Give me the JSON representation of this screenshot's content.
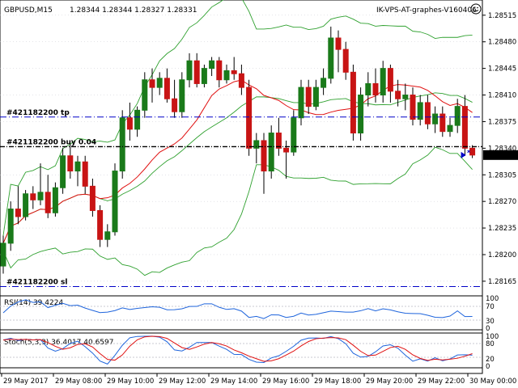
{
  "window": {
    "symbol_timeframe": "GBPUSD,M15",
    "ohlc": "1.28344 1.28344 1.28327 1.28331",
    "expert": "IK-VPS-AT-graphes-V160406",
    "expert_icon": "smiley-icon"
  },
  "colors": {
    "bull": "#1a7a1a",
    "bear": "#c81414",
    "ma": "#e01010",
    "bands": "#2ea02e",
    "order_line": "#0000c8",
    "rsi": "#1e64dc",
    "stoch_main": "#1e64dc",
    "stoch_signal": "#e01010",
    "grid": "#c8c8d0",
    "price_label_bg": "#000000"
  },
  "orders": [
    {
      "label": "#421182200 tp",
      "price": 1.28381
    },
    {
      "label": "#421182200 buy 0.04",
      "price": 1.28342
    },
    {
      "label": "#421182200 sl",
      "price": 1.28158
    }
  ],
  "current_price": "1.28331",
  "price_axis": [
    "1.28515",
    "1.28480",
    "1.28445",
    "1.28410",
    "1.28375",
    "1.28340",
    "1.28305",
    "1.28270",
    "1.28235",
    "1.28200",
    "1.28165"
  ],
  "time_axis": [
    "29 May 2017",
    "29 May 08:00",
    "29 May 10:00",
    "29 May 12:00",
    "29 May 14:00",
    "29 May 16:00",
    "29 May 18:00",
    "29 May 20:00",
    "29 May 22:00",
    "30 May 00:00"
  ],
  "rsi": {
    "label": "RSI(14) 39.4224",
    "levels": [
      "100",
      "70",
      "30",
      "0"
    ]
  },
  "stoch": {
    "label": "Stoch(5,3,3) 36.4017 40.6597",
    "levels": [
      "100",
      "80",
      "20",
      "0"
    ]
  },
  "chart_data": {
    "type": "candlestick",
    "symbol": "GBPUSD",
    "timeframe": "M15",
    "ylim": [
      1.2815,
      1.2852
    ],
    "candles": [
      {
        "o": 1.28185,
        "h": 1.28225,
        "l": 1.28175,
        "c": 1.28215
      },
      {
        "o": 1.28215,
        "h": 1.2827,
        "l": 1.28205,
        "c": 1.2826
      },
      {
        "o": 1.2826,
        "h": 1.2829,
        "l": 1.2824,
        "c": 1.2825
      },
      {
        "o": 1.2825,
        "h": 1.28285,
        "l": 1.28245,
        "c": 1.2828
      },
      {
        "o": 1.2828,
        "h": 1.2829,
        "l": 1.2826,
        "c": 1.28272
      },
      {
        "o": 1.28272,
        "h": 1.2832,
        "l": 1.28265,
        "c": 1.28282
      },
      {
        "o": 1.28282,
        "h": 1.28305,
        "l": 1.28248,
        "c": 1.28255
      },
      {
        "o": 1.28255,
        "h": 1.28295,
        "l": 1.2825,
        "c": 1.28288
      },
      {
        "o": 1.28288,
        "h": 1.2834,
        "l": 1.2828,
        "c": 1.2833
      },
      {
        "o": 1.2833,
        "h": 1.28345,
        "l": 1.283,
        "c": 1.2831
      },
      {
        "o": 1.2831,
        "h": 1.2833,
        "l": 1.2829,
        "c": 1.28322
      },
      {
        "o": 1.28322,
        "h": 1.2833,
        "l": 1.2828,
        "c": 1.2829
      },
      {
        "o": 1.2829,
        "h": 1.283,
        "l": 1.2825,
        "c": 1.28258
      },
      {
        "o": 1.28258,
        "h": 1.28265,
        "l": 1.2821,
        "c": 1.2822
      },
      {
        "o": 1.2822,
        "h": 1.2824,
        "l": 1.2821,
        "c": 1.2823
      },
      {
        "o": 1.2823,
        "h": 1.2832,
        "l": 1.28225,
        "c": 1.2831
      },
      {
        "o": 1.2831,
        "h": 1.2839,
        "l": 1.283,
        "c": 1.2838
      },
      {
        "o": 1.2838,
        "h": 1.284,
        "l": 1.2835,
        "c": 1.28365
      },
      {
        "o": 1.28365,
        "h": 1.28395,
        "l": 1.28355,
        "c": 1.2839
      },
      {
        "o": 1.2839,
        "h": 1.2844,
        "l": 1.2838,
        "c": 1.2843
      },
      {
        "o": 1.2843,
        "h": 1.28445,
        "l": 1.284,
        "c": 1.2842
      },
      {
        "o": 1.2842,
        "h": 1.2844,
        "l": 1.2841,
        "c": 1.28432
      },
      {
        "o": 1.28432,
        "h": 1.28445,
        "l": 1.284,
        "c": 1.28405
      },
      {
        "o": 1.28405,
        "h": 1.2843,
        "l": 1.2838,
        "c": 1.28388
      },
      {
        "o": 1.28388,
        "h": 1.2844,
        "l": 1.2838,
        "c": 1.2843
      },
      {
        "o": 1.2843,
        "h": 1.28465,
        "l": 1.2842,
        "c": 1.28455
      },
      {
        "o": 1.28455,
        "h": 1.28465,
        "l": 1.2842,
        "c": 1.28425
      },
      {
        "o": 1.28425,
        "h": 1.2845,
        "l": 1.2842,
        "c": 1.28445
      },
      {
        "o": 1.28445,
        "h": 1.2846,
        "l": 1.28435,
        "c": 1.28455
      },
      {
        "o": 1.28455,
        "h": 1.2846,
        "l": 1.2842,
        "c": 1.2843
      },
      {
        "o": 1.2843,
        "h": 1.2845,
        "l": 1.28425,
        "c": 1.28442
      },
      {
        "o": 1.28442,
        "h": 1.2846,
        "l": 1.2843,
        "c": 1.28438
      },
      {
        "o": 1.28438,
        "h": 1.2845,
        "l": 1.2841,
        "c": 1.2842
      },
      {
        "o": 1.2842,
        "h": 1.2843,
        "l": 1.2833,
        "c": 1.2834
      },
      {
        "o": 1.2834,
        "h": 1.2836,
        "l": 1.2832,
        "c": 1.2835
      },
      {
        "o": 1.2835,
        "h": 1.2836,
        "l": 1.2828,
        "c": 1.2831
      },
      {
        "o": 1.2831,
        "h": 1.2837,
        "l": 1.283,
        "c": 1.2836
      },
      {
        "o": 1.2836,
        "h": 1.2838,
        "l": 1.2833,
        "c": 1.2834
      },
      {
        "o": 1.2834,
        "h": 1.2835,
        "l": 1.283,
        "c": 1.28335
      },
      {
        "o": 1.28335,
        "h": 1.2839,
        "l": 1.2833,
        "c": 1.2838
      },
      {
        "o": 1.2838,
        "h": 1.2843,
        "l": 1.2837,
        "c": 1.2842
      },
      {
        "o": 1.2842,
        "h": 1.2843,
        "l": 1.28385,
        "c": 1.28395
      },
      {
        "o": 1.28395,
        "h": 1.2843,
        "l": 1.2839,
        "c": 1.2842
      },
      {
        "o": 1.2842,
        "h": 1.28445,
        "l": 1.2841,
        "c": 1.28432
      },
      {
        "o": 1.28432,
        "h": 1.285,
        "l": 1.28425,
        "c": 1.28485
      },
      {
        "o": 1.28485,
        "h": 1.28495,
        "l": 1.2844,
        "c": 1.2847
      },
      {
        "o": 1.2847,
        "h": 1.2848,
        "l": 1.2843,
        "c": 1.2844
      },
      {
        "o": 1.2844,
        "h": 1.2845,
        "l": 1.2835,
        "c": 1.2836
      },
      {
        "o": 1.2836,
        "h": 1.2842,
        "l": 1.2835,
        "c": 1.2841
      },
      {
        "o": 1.2841,
        "h": 1.2844,
        "l": 1.28395,
        "c": 1.28425
      },
      {
        "o": 1.28425,
        "h": 1.28445,
        "l": 1.284,
        "c": 1.2841
      },
      {
        "o": 1.2841,
        "h": 1.28455,
        "l": 1.284,
        "c": 1.28445
      },
      {
        "o": 1.28445,
        "h": 1.2845,
        "l": 1.284,
        "c": 1.28415
      },
      {
        "o": 1.28415,
        "h": 1.2843,
        "l": 1.28395,
        "c": 1.28405
      },
      {
        "o": 1.28405,
        "h": 1.28425,
        "l": 1.2839,
        "c": 1.2841
      },
      {
        "o": 1.2841,
        "h": 1.2842,
        "l": 1.2837,
        "c": 1.28378
      },
      {
        "o": 1.28378,
        "h": 1.2841,
        "l": 1.2837,
        "c": 1.284
      },
      {
        "o": 1.284,
        "h": 1.2841,
        "l": 1.28365,
        "c": 1.28372
      },
      {
        "o": 1.28372,
        "h": 1.28395,
        "l": 1.2836,
        "c": 1.28385
      },
      {
        "o": 1.28385,
        "h": 1.28395,
        "l": 1.28355,
        "c": 1.28362
      },
      {
        "o": 1.28362,
        "h": 1.2838,
        "l": 1.28355,
        "c": 1.2837
      },
      {
        "o": 1.2837,
        "h": 1.28405,
        "l": 1.2836,
        "c": 1.28395
      },
      {
        "o": 1.28395,
        "h": 1.2841,
        "l": 1.2833,
        "c": 1.2834
      },
      {
        "o": 1.2834,
        "h": 1.28344,
        "l": 1.28327,
        "c": 1.28331
      }
    ],
    "rsi_last": 39.4224,
    "stoch_last": [
      36.4017,
      40.6597
    ]
  }
}
